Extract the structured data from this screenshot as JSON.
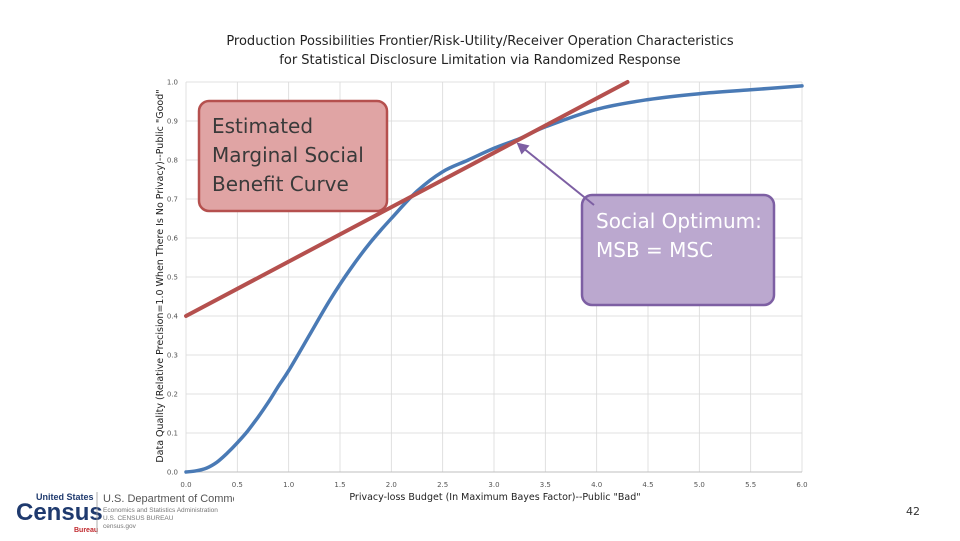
{
  "slide": {
    "title_line1": "Production Possibilities Frontier/Risk-Utility/Receiver Operation Characteristics",
    "title_line2": "for Statistical Disclosure Limitation via Randomized Response",
    "page_number": "42"
  },
  "logo": {
    "brand_top": "United States",
    "brand_main": "Census",
    "brand_sub": "Bureau",
    "dept": "U.S. Department of Commerce",
    "line1": "Economics and Statistics Administration",
    "line2": "U.S. CENSUS BUREAU",
    "line3": "census.gov"
  },
  "annotations": {
    "msb_label_lines": [
      "Estimated",
      "Marginal Social",
      "Benefit Curve"
    ],
    "optimum_label_lines": [
      "Social Optimum:",
      "MSB = MSC"
    ]
  },
  "colors": {
    "curve": "#4a7ab5",
    "tangent": "#b5504e",
    "msb_box_fill": "#e0a4a4",
    "msb_box_border": "#b5504e",
    "optimum_box_fill": "#bba8cf",
    "optimum_box_border": "#7d5fa3",
    "arrow": "#7d5fa3",
    "grid": "#d9d9d9",
    "census_blue": "#1f3a6e",
    "census_red": "#c0282d"
  },
  "chart_data": {
    "type": "line",
    "xlabel": "Privacy-loss Budget (In Maximum Bayes Factor)--Public \"Bad\"",
    "ylabel": "Data Quality (Relative Precision=1.0 When There Is No Privacy)--Public \"Good\"",
    "xlim": [
      0,
      6
    ],
    "ylim": [
      0,
      1
    ],
    "x_ticks": [
      "0.0",
      "0.5",
      "1.0",
      "1.5",
      "2.0",
      "2.5",
      "3.0",
      "3.5",
      "4.0",
      "4.5",
      "5.0",
      "5.5",
      "6.0"
    ],
    "y_ticks": [
      "0.0",
      "0.1",
      "0.2",
      "0.3",
      "0.4",
      "0.5",
      "0.6",
      "0.7",
      "0.8",
      "0.9",
      "1.0"
    ],
    "grid": true,
    "series": [
      {
        "role": "frontier",
        "x": [
          0,
          0.1,
          0.2,
          0.3,
          0.4,
          0.5,
          0.6,
          0.7,
          0.8,
          0.9,
          1.0,
          1.2,
          1.4,
          1.6,
          1.8,
          2.0,
          2.25,
          2.5,
          2.75,
          3.0,
          3.25,
          3.5,
          4.0,
          4.5,
          5.0,
          5.5,
          6.0
        ],
        "y": [
          0,
          0.003,
          0.01,
          0.025,
          0.048,
          0.075,
          0.105,
          0.14,
          0.178,
          0.22,
          0.26,
          0.35,
          0.44,
          0.52,
          0.59,
          0.65,
          0.72,
          0.77,
          0.8,
          0.83,
          0.855,
          0.885,
          0.93,
          0.955,
          0.97,
          0.98,
          0.99
        ]
      },
      {
        "role": "tangent",
        "x": [
          0,
          4.3
        ],
        "y": [
          0.4,
          1.0
        ]
      }
    ],
    "optimum_point": {
      "x": 3.2,
      "y": 0.85
    }
  }
}
